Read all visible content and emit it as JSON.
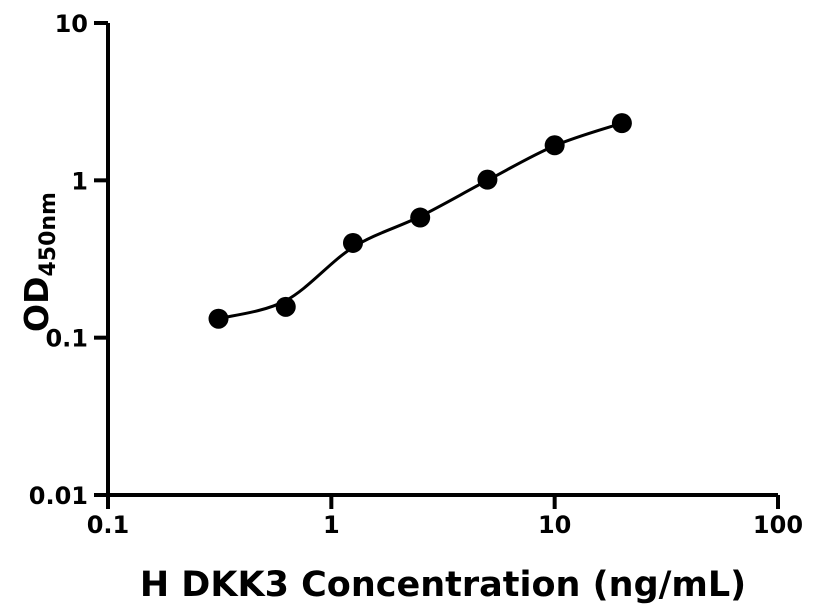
{
  "chart_data": {
    "type": "scatter",
    "title": "",
    "xlabel": "H DKK3 Concentration (ng/mL)",
    "ylabel": "OD",
    "ylabel_subscript": "450nm",
    "x_scale": "log",
    "y_scale": "log",
    "xlim": [
      0.1,
      100
    ],
    "ylim": [
      0.01,
      10
    ],
    "x_ticks": [
      0.1,
      1,
      10,
      100
    ],
    "x_tick_labels": [
      "0.1",
      "1",
      "10",
      "100"
    ],
    "y_ticks": [
      0.01,
      0.1,
      1,
      10
    ],
    "y_tick_labels": [
      "0.01",
      "0.1",
      "1",
      "10"
    ],
    "grid": false,
    "legend": false,
    "series": [
      {
        "name": "standard-curve-points",
        "type": "scatter",
        "marker": "circle",
        "color": "#000000",
        "x": [
          0.3125,
          0.625,
          1.25,
          2.5,
          5,
          10,
          20
        ],
        "y": [
          0.132,
          0.157,
          0.4,
          0.58,
          1.01,
          1.67,
          2.31
        ]
      },
      {
        "name": "fit-curve",
        "type": "line",
        "color": "#000000",
        "x": [
          0.3125,
          0.625,
          1.25,
          2.5,
          5,
          10,
          20
        ],
        "y": [
          0.132,
          0.172,
          0.375,
          0.59,
          1.0,
          1.66,
          2.31
        ]
      }
    ],
    "colors": {
      "foreground": "#000000",
      "background": "#ffffff"
    }
  }
}
